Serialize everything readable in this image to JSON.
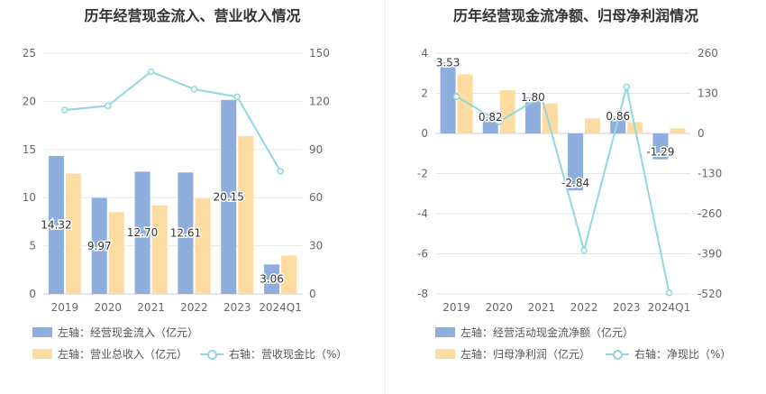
{
  "colors": {
    "bar1": "#8eaedd",
    "bar2": "#fddba1",
    "line": "#8fd8dc",
    "grid": "#e6e6e6",
    "axis": "#cccccc"
  },
  "chart_data": [
    {
      "type": "bar",
      "title": "历年经营现金流入、营业收入情况",
      "categories": [
        "2019",
        "2020",
        "2021",
        "2022",
        "2023",
        "2024Q1"
      ],
      "series": [
        {
          "name": "左轴：经营现金流入（亿元）",
          "axis": "left",
          "kind": "bar",
          "values": [
            14.32,
            9.97,
            12.7,
            12.61,
            20.15,
            3.06
          ],
          "labels": [
            "14.32",
            "9.97",
            "12.70",
            "12.61",
            "20.15",
            "3.06"
          ]
        },
        {
          "name": "左轴：营业总收入（亿元）",
          "axis": "left",
          "kind": "bar",
          "values": [
            12.5,
            8.5,
            9.2,
            9.9,
            16.4,
            4.0
          ]
        },
        {
          "name": "右轴：营收现金比（%）",
          "axis": "right",
          "kind": "line",
          "values": [
            114.6,
            117.2,
            138.5,
            127.6,
            122.8,
            76.5
          ]
        }
      ],
      "left_axis": {
        "min": 0,
        "max": 25,
        "ticks": [
          "0",
          "5",
          "10",
          "15",
          "20",
          "25"
        ]
      },
      "right_axis": {
        "min": 0,
        "max": 150,
        "ticks": [
          "0",
          "30",
          "60",
          "90",
          "120",
          "150"
        ]
      },
      "legend_position": "bottom-left",
      "grid": true
    },
    {
      "type": "bar",
      "title": "历年经营现金流净额、归母净利润情况",
      "categories": [
        "2019",
        "2020",
        "2021",
        "2022",
        "2023",
        "2024Q1"
      ],
      "series": [
        {
          "name": "左轴：经营活动现金流净额（亿元）",
          "axis": "left",
          "kind": "bar",
          "values": [
            3.53,
            0.82,
            1.8,
            -2.84,
            0.86,
            -1.29
          ],
          "labels": [
            "3.53",
            "0.82",
            "1.80",
            "-2.84",
            "0.86",
            "-1.29"
          ]
        },
        {
          "name": "左轴：归母净利润（亿元）",
          "axis": "left",
          "kind": "bar",
          "values": [
            2.95,
            2.15,
            1.5,
            0.75,
            0.57,
            0.25
          ]
        },
        {
          "name": "右轴：净现比（%）",
          "axis": "right",
          "kind": "line",
          "values": [
            119.7,
            38.1,
            120.0,
            -378.7,
            150.9,
            -516.0
          ]
        }
      ],
      "left_axis": {
        "min": -8,
        "max": 4,
        "ticks": [
          "-8",
          "-6",
          "-4",
          "-2",
          "0",
          "2",
          "4"
        ]
      },
      "right_axis": {
        "min": -520,
        "max": 260,
        "ticks": [
          "-520",
          "-390",
          "-260",
          "-130",
          "0",
          "130",
          "260"
        ]
      },
      "legend_position": "bottom-left",
      "grid": true
    }
  ]
}
